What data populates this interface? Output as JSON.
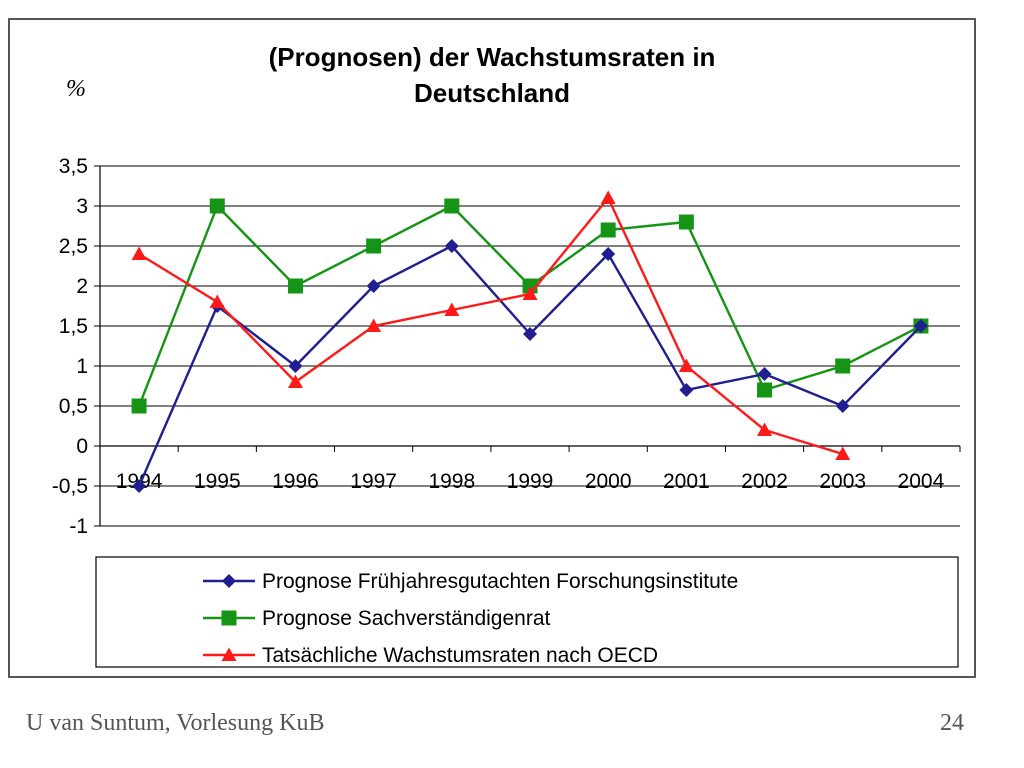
{
  "chart_data": {
    "type": "line",
    "title": "(Prognosen) der Wachstumsraten in Deutschland",
    "title_lines": [
      "(Prognosen) der Wachstumsraten in",
      "Deutschland"
    ],
    "unit_label": "%",
    "categories": [
      "1994",
      "1995",
      "1996",
      "1997",
      "1998",
      "1999",
      "2000",
      "2001",
      "2002",
      "2003",
      "2004"
    ],
    "yticks": [
      "3,5",
      "3",
      "2,5",
      "2",
      "1,5",
      "1",
      "0,5",
      "0",
      "-0,5",
      "-1"
    ],
    "ylim": [
      -1,
      3.5
    ],
    "grid": true,
    "legend_position": "bottom",
    "series": [
      {
        "name": "Prognose Frühjahresgutachten Forschungsinstitute",
        "color": "#1f1f8f",
        "marker": "diamond",
        "values": [
          -0.5,
          1.75,
          1.0,
          2.0,
          2.5,
          1.4,
          2.4,
          0.7,
          0.9,
          0.5,
          1.5
        ]
      },
      {
        "name": "Prognose Sachverständigenrat",
        "color": "#159415",
        "marker": "square",
        "values": [
          0.5,
          3.0,
          2.0,
          2.5,
          3.0,
          2.0,
          2.7,
          2.8,
          0.7,
          1.0,
          1.5
        ]
      },
      {
        "name": "Tatsächliche Wachstumsraten nach OECD",
        "color": "#ff1a1a",
        "marker": "triangle",
        "values": [
          2.4,
          1.8,
          0.8,
          1.5,
          1.7,
          1.9,
          3.1,
          1.0,
          0.2,
          -0.1,
          null
        ]
      }
    ]
  },
  "footer": {
    "left": "U van Suntum, Vorlesung KuB",
    "right": "24"
  }
}
